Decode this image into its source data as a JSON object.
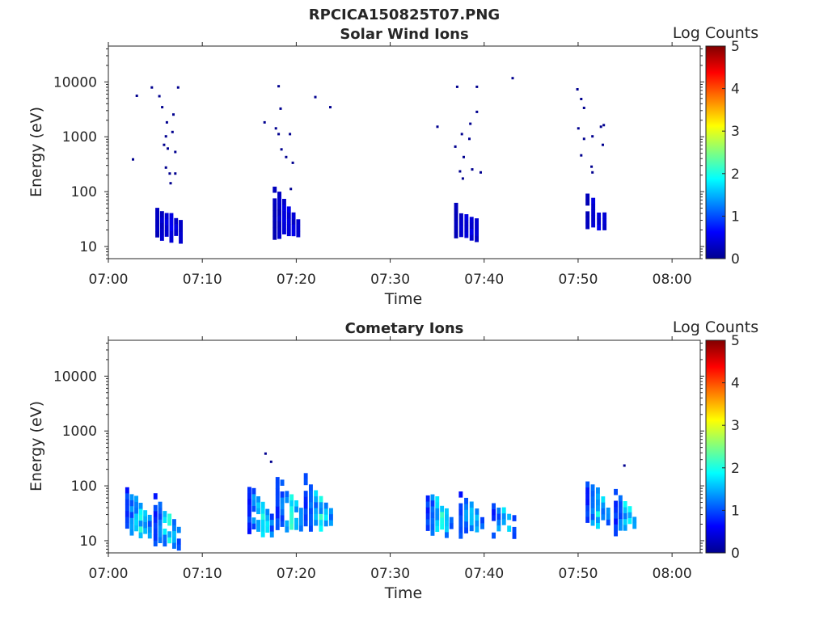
{
  "figure_title": "RPCICA150825T07.PNG",
  "colors": {
    "jet": [
      "#00008f",
      "#0000ff",
      "#0080ff",
      "#00ffff",
      "#80ff80",
      "#ffff00",
      "#ff8000",
      "#ff0000",
      "#800000"
    ],
    "axis": "#262626"
  },
  "chart_data": [
    {
      "type": "heatmap",
      "title": "Solar Wind Ions",
      "xlabel": "Time",
      "ylabel": "Energy (eV)",
      "xscale": "time",
      "xlim": [
        "07:00",
        "08:03"
      ],
      "xticks": [
        "07:00",
        "07:10",
        "07:20",
        "07:30",
        "07:40",
        "07:50",
        "08:00"
      ],
      "yscale": "log",
      "ylim": [
        6,
        45000
      ],
      "yticks": [
        "10",
        "100",
        "1000",
        "10000"
      ],
      "colorbar": {
        "label": "Log Counts",
        "range": [
          0,
          5
        ],
        "ticks": [
          "0",
          "1",
          "2",
          "3",
          "4",
          "5"
        ]
      },
      "grid": false,
      "blobs": [
        {
          "time_min": [
            5.0,
            7.5
          ],
          "energy_ev": [
            12,
            42
          ],
          "log_counts": [
            0.1,
            0.6
          ]
        },
        {
          "time_min": [
            17.5,
            20.0
          ],
          "energy_ev": [
            12,
            110
          ],
          "log_counts": [
            0.1,
            0.6
          ]
        },
        {
          "time_min": [
            36.8,
            39.0
          ],
          "energy_ev": [
            12,
            55
          ],
          "log_counts": [
            0.1,
            0.6
          ]
        },
        {
          "time_min": [
            50.8,
            52.6
          ],
          "energy_ev": [
            18,
            80
          ],
          "log_counts": [
            0.1,
            0.6
          ]
        }
      ],
      "scatter": [
        {
          "time_min": 2.5,
          "energy_ev": 380
        },
        {
          "time_min": 2.9,
          "energy_ev": 5500
        },
        {
          "time_min": 4.5,
          "energy_ev": 7800
        },
        {
          "time_min": 5.3,
          "energy_ev": 5400
        },
        {
          "time_min": 5.6,
          "energy_ev": 3400
        },
        {
          "time_min": 6.1,
          "energy_ev": 1800
        },
        {
          "time_min": 6.0,
          "energy_ev": 1000
        },
        {
          "time_min": 5.8,
          "energy_ev": 700
        },
        {
          "time_min": 6.2,
          "energy_ev": 600
        },
        {
          "time_min": 6.7,
          "energy_ev": 1200
        },
        {
          "time_min": 6.8,
          "energy_ev": 2500
        },
        {
          "time_min": 6.0,
          "energy_ev": 270
        },
        {
          "time_min": 6.4,
          "energy_ev": 210
        },
        {
          "time_min": 6.5,
          "energy_ev": 140
        },
        {
          "time_min": 7.0,
          "energy_ev": 210
        },
        {
          "time_min": 7.0,
          "energy_ev": 520
        },
        {
          "time_min": 7.3,
          "energy_ev": 7800
        },
        {
          "time_min": 16.5,
          "energy_ev": 1800
        },
        {
          "time_min": 18.0,
          "energy_ev": 8200
        },
        {
          "time_min": 18.2,
          "energy_ev": 3200
        },
        {
          "time_min": 17.7,
          "energy_ev": 1400
        },
        {
          "time_min": 18.0,
          "energy_ev": 1100
        },
        {
          "time_min": 19.2,
          "energy_ev": 1100
        },
        {
          "time_min": 18.3,
          "energy_ev": 580
        },
        {
          "time_min": 18.8,
          "energy_ev": 420
        },
        {
          "time_min": 19.5,
          "energy_ev": 330
        },
        {
          "time_min": 19.3,
          "energy_ev": 110
        },
        {
          "time_min": 21.9,
          "energy_ev": 5200
        },
        {
          "time_min": 23.5,
          "energy_ev": 3400
        },
        {
          "time_min": 34.9,
          "energy_ev": 1500
        },
        {
          "time_min": 37.0,
          "energy_ev": 8000
        },
        {
          "time_min": 37.5,
          "energy_ev": 1100
        },
        {
          "time_min": 36.8,
          "energy_ev": 650
        },
        {
          "time_min": 37.7,
          "energy_ev": 420
        },
        {
          "time_min": 37.3,
          "energy_ev": 230
        },
        {
          "time_min": 37.6,
          "energy_ev": 170
        },
        {
          "time_min": 38.3,
          "energy_ev": 900
        },
        {
          "time_min": 38.4,
          "energy_ev": 1700
        },
        {
          "time_min": 38.6,
          "energy_ev": 250
        },
        {
          "time_min": 39.1,
          "energy_ev": 2800
        },
        {
          "time_min": 39.1,
          "energy_ev": 8000
        },
        {
          "time_min": 39.5,
          "energy_ev": 220
        },
        {
          "time_min": 42.9,
          "energy_ev": 11500
        },
        {
          "time_min": 49.8,
          "energy_ev": 7200
        },
        {
          "time_min": 50.2,
          "energy_ev": 4800
        },
        {
          "time_min": 50.5,
          "energy_ev": 3300
        },
        {
          "time_min": 49.9,
          "energy_ev": 1400
        },
        {
          "time_min": 50.5,
          "energy_ev": 900
        },
        {
          "time_min": 50.2,
          "energy_ev": 450
        },
        {
          "time_min": 51.3,
          "energy_ev": 280
        },
        {
          "time_min": 51.4,
          "energy_ev": 220
        },
        {
          "time_min": 52.3,
          "energy_ev": 1500
        },
        {
          "time_min": 52.6,
          "energy_ev": 1600
        },
        {
          "time_min": 52.5,
          "energy_ev": 700
        },
        {
          "time_min": 51.4,
          "energy_ev": 1000
        }
      ]
    },
    {
      "type": "heatmap",
      "title": "Cometary Ions",
      "xlabel": "Time",
      "ylabel": "Energy (eV)",
      "xscale": "time",
      "xlim": [
        "07:00",
        "08:03"
      ],
      "xticks": [
        "07:00",
        "07:10",
        "07:20",
        "07:30",
        "07:40",
        "07:50",
        "08:00"
      ],
      "yscale": "log",
      "ylim": [
        6,
        45000
      ],
      "yticks": [
        "10",
        "100",
        "1000",
        "10000"
      ],
      "colorbar": {
        "label": "Log Counts",
        "range": [
          0,
          5
        ],
        "ticks": [
          "0",
          "1",
          "2",
          "3",
          "4",
          "5"
        ]
      },
      "grid": false,
      "blobs": [
        {
          "time_min": [
            1.8,
            4.2
          ],
          "energy_ev": [
            12,
            90
          ],
          "log_counts": [
            0.3,
            2.2
          ]
        },
        {
          "time_min": [
            4.8,
            7.3
          ],
          "energy_ev": [
            7,
            60
          ],
          "log_counts": [
            0.3,
            2.2
          ]
        },
        {
          "time_min": [
            14.8,
            17.2
          ],
          "energy_ev": [
            12,
            100
          ],
          "log_counts": [
            0.3,
            2.2
          ]
        },
        {
          "time_min": [
            17.8,
            20.3
          ],
          "energy_ev": [
            15,
            140
          ],
          "log_counts": [
            0.3,
            2.2
          ]
        },
        {
          "time_min": [
            20.8,
            23.5
          ],
          "energy_ev": [
            15,
            140
          ],
          "log_counts": [
            0.3,
            2.2
          ]
        },
        {
          "time_min": [
            33.8,
            36.3
          ],
          "energy_ev": [
            12,
            85
          ],
          "log_counts": [
            0.3,
            2.2
          ]
        },
        {
          "time_min": [
            37.3,
            39.6
          ],
          "energy_ev": [
            12,
            70
          ],
          "log_counts": [
            0.3,
            2.2
          ]
        },
        {
          "time_min": [
            40.8,
            43.0
          ],
          "energy_ev": [
            12,
            40
          ],
          "log_counts": [
            0.3,
            2.2
          ]
        },
        {
          "time_min": [
            50.8,
            53.0
          ],
          "energy_ev": [
            18,
            140
          ],
          "log_counts": [
            0.3,
            2.2
          ]
        },
        {
          "time_min": [
            53.8,
            55.8
          ],
          "energy_ev": [
            12,
            80
          ],
          "log_counts": [
            0.3,
            2.2
          ]
        }
      ],
      "scatter": [
        {
          "time_min": 16.6,
          "energy_ev": 380
        },
        {
          "time_min": 17.2,
          "energy_ev": 270
        },
        {
          "time_min": 54.8,
          "energy_ev": 230
        }
      ]
    }
  ]
}
